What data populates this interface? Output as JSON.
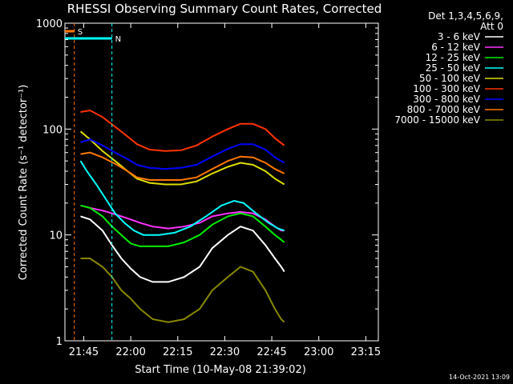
{
  "chart_data": {
    "type": "line",
    "title": "RHESSI Observing Summary Count Rates, Corrected",
    "xlabel": "Start Time (10-May-08 21:39:02)",
    "ylabel": "Corrected Count Rate (s⁻¹ detector⁻¹)",
    "yscale": "log",
    "ylim": [
      1,
      1000
    ],
    "xlim_min": [
      0,
      100
    ],
    "x_ticks": [
      {
        "min": 6,
        "label": "21:45"
      },
      {
        "min": 21,
        "label": "22:00"
      },
      {
        "min": 36,
        "label": "22:15"
      },
      {
        "min": 51,
        "label": "22:30"
      },
      {
        "min": 66,
        "label": "22:45"
      },
      {
        "min": 81,
        "label": "23:00"
      },
      {
        "min": 96,
        "label": "23:15"
      }
    ],
    "y_ticks": [
      {
        "v": 1,
        "label": "1"
      },
      {
        "v": 10,
        "label": "10"
      },
      {
        "v": 100,
        "label": "100"
      },
      {
        "v": 1000,
        "label": "1000"
      }
    ],
    "legend_header": [
      "Det 1,3,4,5,6,9,",
      "Att 0"
    ],
    "legend_position": "right",
    "series": [
      {
        "name": "3 - 6 keV",
        "color": "#ffffff",
        "x": [
          5,
          8,
          12,
          15,
          18,
          21,
          24,
          28,
          33,
          38,
          43,
          47,
          52,
          56,
          60,
          64,
          67,
          69,
          70
        ],
        "y": [
          15,
          14,
          11,
          8,
          6,
          4.8,
          4,
          3.6,
          3.6,
          4,
          5,
          7.5,
          10,
          12,
          11,
          8,
          6,
          5,
          4.5
        ]
      },
      {
        "name": "6 - 12 keV",
        "color": "#ff33ff",
        "x": [
          5,
          8,
          12,
          15,
          18,
          21,
          24,
          28,
          33,
          38,
          43,
          47,
          52,
          56,
          60,
          64,
          67,
          69,
          70
        ],
        "y": [
          19,
          18,
          17,
          16,
          15,
          14,
          13,
          12,
          11.5,
          12,
          13,
          15,
          16,
          16.5,
          16,
          14,
          12,
          11,
          11
        ]
      },
      {
        "name": "12 - 25 keV",
        "color": "#00ee00",
        "x": [
          5,
          8,
          12,
          15,
          18,
          21,
          24,
          28,
          33,
          38,
          43,
          47,
          52,
          56,
          60,
          64,
          67,
          69,
          70
        ],
        "y": [
          19,
          18,
          15,
          12,
          10,
          8.3,
          7.8,
          7.8,
          7.8,
          8.5,
          10,
          12.5,
          15,
          16,
          15,
          12,
          10,
          9,
          8.5
        ]
      },
      {
        "name": "25 - 50 keV",
        "color": "#00ffff",
        "x": [
          5,
          7,
          10,
          13,
          16,
          19,
          22,
          25,
          30,
          35,
          40,
          45,
          50,
          54,
          57,
          61,
          65,
          68,
          70
        ],
        "y": [
          50,
          40,
          30,
          22,
          16,
          13,
          11,
          10,
          10,
          10.5,
          12,
          15,
          19,
          21,
          20,
          16,
          13,
          11.5,
          11
        ]
      },
      {
        "name": "50 - 100 keV",
        "color": "#dddd00",
        "x": [
          5,
          8,
          12,
          16,
          20,
          23,
          27,
          32,
          37,
          42,
          47,
          52,
          56,
          60,
          64,
          67,
          70
        ],
        "y": [
          95,
          80,
          62,
          50,
          40,
          34,
          31,
          30,
          30,
          32,
          38,
          44,
          48,
          46,
          40,
          34,
          30
        ]
      },
      {
        "name": "100 - 300 keV",
        "color": "#ff3300",
        "x": [
          5,
          8,
          12,
          16,
          20,
          23,
          27,
          32,
          37,
          42,
          47,
          52,
          56,
          60,
          64,
          67,
          70
        ],
        "y": [
          145,
          150,
          130,
          105,
          85,
          72,
          64,
          62,
          63,
          70,
          85,
          100,
          112,
          112,
          100,
          82,
          70
        ]
      },
      {
        "name": "300 - 800 keV",
        "color": "#0000ff",
        "x": [
          5,
          8,
          12,
          16,
          20,
          23,
          27,
          32,
          37,
          42,
          47,
          52,
          56,
          60,
          64,
          67,
          70
        ],
        "y": [
          75,
          80,
          70,
          60,
          52,
          46,
          43,
          42,
          43,
          46,
          55,
          65,
          72,
          72,
          64,
          54,
          48
        ]
      },
      {
        "name": "800 - 7000 keV",
        "color": "#ff7700",
        "x": [
          5,
          8,
          12,
          16,
          20,
          23,
          27,
          32,
          37,
          42,
          47,
          52,
          56,
          60,
          64,
          67,
          70
        ],
        "y": [
          58,
          60,
          54,
          47,
          40,
          35,
          33,
          33,
          33,
          35,
          42,
          50,
          55,
          54,
          48,
          42,
          38
        ]
      },
      {
        "name": "7000 - 15000 keV",
        "color": "#888800",
        "x": [
          5,
          8,
          12,
          15,
          18,
          21,
          24,
          28,
          33,
          38,
          43,
          47,
          52,
          56,
          60,
          64,
          67,
          69,
          70
        ],
        "y": [
          6,
          6,
          5,
          4,
          3,
          2.5,
          2,
          1.6,
          1.5,
          1.6,
          2,
          3,
          4,
          5,
          4.5,
          3,
          2,
          1.6,
          1.5
        ]
      }
    ],
    "flags": [
      {
        "label": "S",
        "color": "#ff7700",
        "start_min": 0,
        "end_min": 3
      },
      {
        "label": "N",
        "color": "#00ffff",
        "start_min": 0,
        "end_min": 15
      }
    ]
  },
  "footer": {
    "timestamp": "14-Oct-2021 13:09"
  }
}
